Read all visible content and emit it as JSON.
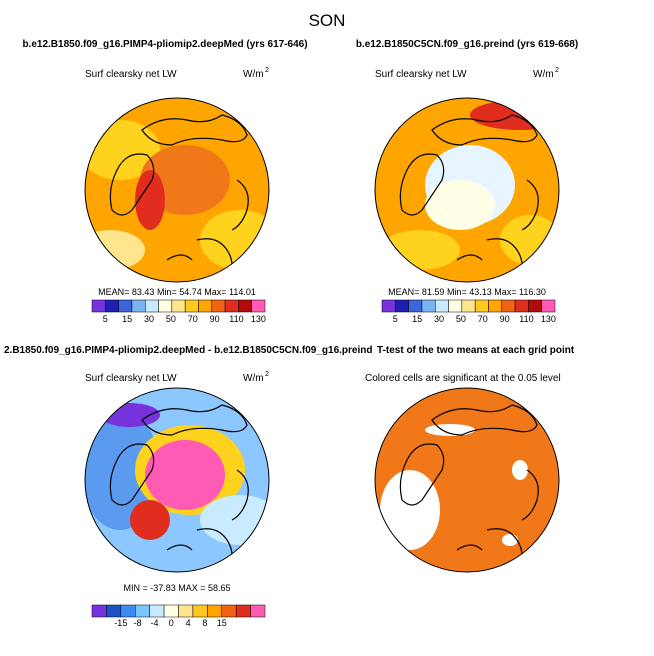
{
  "title": "SON",
  "panels": [
    {
      "heading": "b.e12.B1850.f09_g16.PIMP4-pliomip2.deepMed (yrs 617-646)",
      "variable": "Surf clearsky net LW",
      "units": "W/m",
      "units_power": "2",
      "stats": "MEAN=  83.43  Min=  54.74  Max= 114.01",
      "colorbar_labels": [
        "5",
        "15",
        "30",
        "50",
        "70",
        "90",
        "110",
        "130"
      ]
    },
    {
      "heading": "b.e12.B1850C5CN.f09_g16.preind (yrs 619-668)",
      "variable": "Surf clearsky net LW",
      "units": "W/m",
      "units_power": "2",
      "stats": "MEAN=  81.59  Min=  43.13  Max= 116.30",
      "colorbar_labels": [
        "5",
        "15",
        "30",
        "50",
        "70",
        "90",
        "110",
        "130"
      ]
    },
    {
      "heading": "2.B1850.f09_g16.PIMP4-pliomip2.deepMed - b.e12.B1850C5CN.f09_g16.preind",
      "variable": "Surf clearsky net LW",
      "units": "W/m",
      "units_power": "2",
      "stats": "MIN = -37.83 MAX =  58.65",
      "colorbar_labels": [
        "-15",
        "-8",
        "-4",
        "0",
        "4",
        "8",
        "15"
      ]
    },
    {
      "heading": "T-test of the two means at each grid point",
      "variable": "Colored cells are significant at the 0.05 level"
    }
  ]
}
